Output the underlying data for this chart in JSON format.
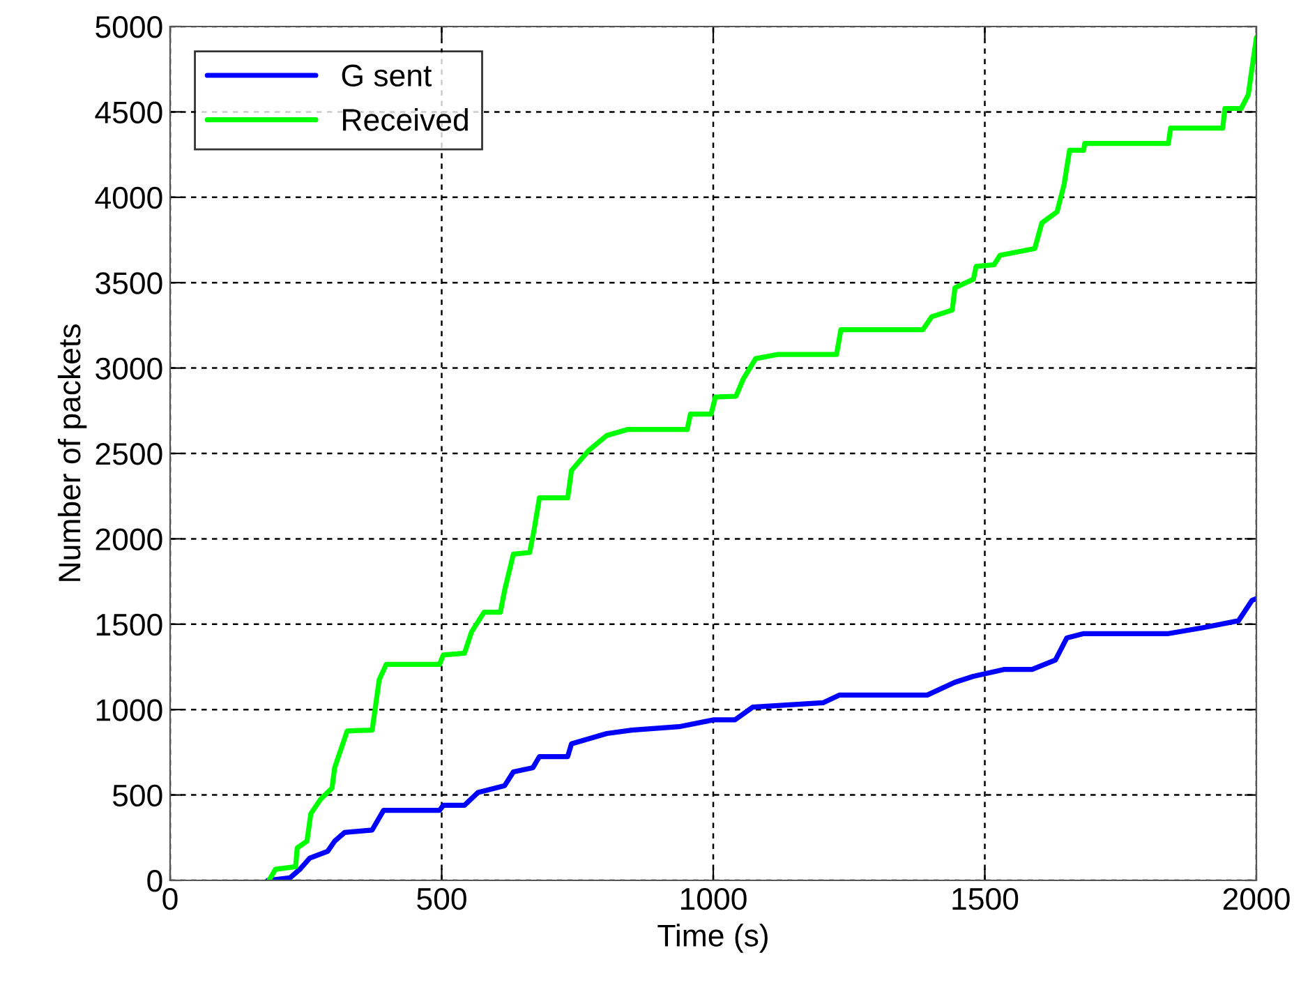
{
  "chart_data": {
    "type": "line",
    "xlabel": "Time (s)",
    "ylabel": "Number of packets",
    "xlim": [
      0,
      2000
    ],
    "ylim": [
      0,
      5000
    ],
    "xticks": [
      0,
      500,
      1000,
      1500,
      2000
    ],
    "yticks": [
      0,
      500,
      1000,
      1500,
      2000,
      2500,
      3000,
      3500,
      4000,
      4500,
      5000
    ],
    "grid": true,
    "legend": "top left",
    "line_style": "solid",
    "marker": "none",
    "series": [
      {
        "name": "G sent",
        "color": "#0000ff",
        "x": [
          180,
          221,
          239,
          257,
          290,
          303,
          321,
          372,
          393,
          496,
          503,
          542,
          567,
          616,
          632,
          668,
          680,
          732,
          739,
          804,
          850,
          937,
          1001,
          1040,
          1073,
          1202,
          1232,
          1394,
          1445,
          1479,
          1535,
          1587,
          1630,
          1651,
          1682,
          1838,
          1902,
          1967,
          1992,
          2000
        ],
        "values": [
          0,
          15,
          65,
          130,
          170,
          230,
          280,
          295,
          410,
          410,
          440,
          440,
          515,
          555,
          635,
          660,
          725,
          725,
          800,
          860,
          880,
          900,
          940,
          940,
          1015,
          1040,
          1085,
          1085,
          1160,
          1195,
          1235,
          1235,
          1290,
          1420,
          1445,
          1445,
          1480,
          1520,
          1640,
          1650
        ]
      },
      {
        "name": "Received",
        "color": "#00ff00",
        "x": [
          182,
          194,
          231,
          234,
          252,
          259,
          277,
          298,
          303,
          318,
          326,
          372,
          385,
          398,
          496,
          503,
          542,
          555,
          578,
          608,
          616,
          632,
          662,
          670,
          680,
          732,
          739,
          770,
          804,
          842,
          952,
          958,
          996,
          1004,
          1042,
          1055,
          1078,
          1119,
          1227,
          1235,
          1386,
          1402,
          1440,
          1445,
          1479,
          1484,
          1517,
          1528,
          1592,
          1605,
          1633,
          1646,
          1656,
          1682,
          1684,
          1838,
          1842,
          1938,
          1942,
          1972,
          1985,
          2000
        ],
        "values": [
          0,
          65,
          80,
          190,
          230,
          390,
          475,
          540,
          660,
          800,
          875,
          880,
          1175,
          1265,
          1265,
          1320,
          1330,
          1455,
          1570,
          1570,
          1700,
          1910,
          1920,
          2050,
          2240,
          2240,
          2400,
          2515,
          2605,
          2640,
          2640,
          2730,
          2730,
          2830,
          2835,
          2935,
          3055,
          3080,
          3080,
          3225,
          3225,
          3300,
          3340,
          3470,
          3520,
          3595,
          3605,
          3660,
          3700,
          3850,
          3915,
          4075,
          4275,
          4275,
          4315,
          4315,
          4405,
          4405,
          4520,
          4520,
          4600,
          4935
        ]
      }
    ]
  }
}
